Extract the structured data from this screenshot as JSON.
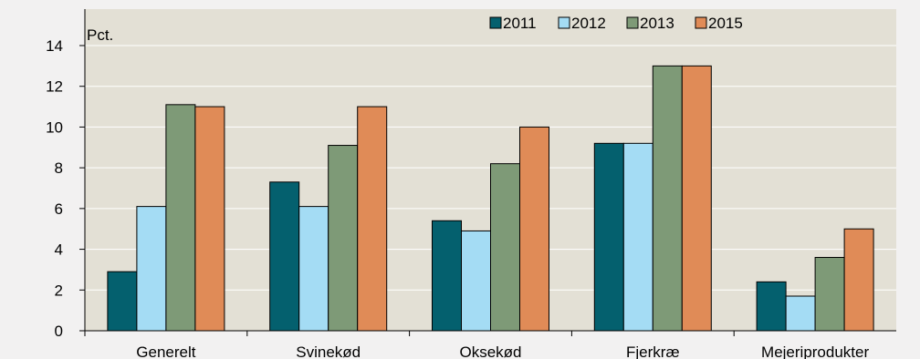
{
  "chart_data": {
    "type": "bar",
    "title": "",
    "unit_label": "Pct.",
    "xlabel": "",
    "ylabel": "",
    "categories": [
      "Generelt",
      "Svinekød",
      "Oksekød",
      "Fjerkræ",
      "Mejeriprodukter"
    ],
    "series": [
      {
        "name": "2011",
        "color": "#04606e",
        "values": [
          2.9,
          7.3,
          5.4,
          9.2,
          2.4
        ]
      },
      {
        "name": "2012",
        "color": "#a4dcf4",
        "values": [
          6.1,
          6.1,
          4.9,
          9.2,
          1.7
        ]
      },
      {
        "name": "2013",
        "color": "#7e9a77",
        "values": [
          11.1,
          9.1,
          8.2,
          13.0,
          3.6
        ]
      },
      {
        "name": "2015",
        "color": "#e08b57",
        "values": [
          11.0,
          11.0,
          10.0,
          13.0,
          5.0
        ]
      }
    ],
    "ylim": [
      0,
      14
    ],
    "yticks": [
      0,
      2,
      4,
      6,
      8,
      10,
      12,
      14
    ],
    "grid": true,
    "legend_position": "top-right",
    "colors": {
      "page_background": "#f2f1f1",
      "plot_background": "#e3e0d5",
      "gridline": "#ffffff",
      "axis": "#000000"
    }
  }
}
